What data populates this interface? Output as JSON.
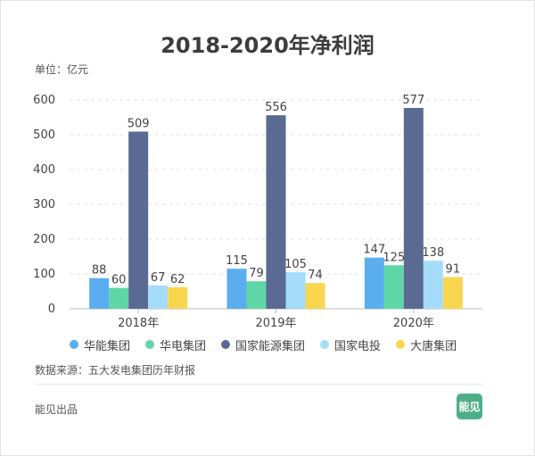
{
  "title": "2018-2020年净利润",
  "unit_label": "单位：亿元",
  "source_label": "数据来源：五大发电集团历年财报",
  "footer_label": "能见出品",
  "logo_text": "能见",
  "chart_data": {
    "type": "bar",
    "title": "2018-2020年净利润",
    "ylabel": "",
    "xlabel": "",
    "categories": [
      "2018年",
      "2019年",
      "2020年"
    ],
    "ylim": [
      0,
      600
    ],
    "yticks": [
      "0",
      "100",
      "200",
      "300",
      "400",
      "500",
      "600"
    ],
    "grid": true,
    "legend_position": "bottom",
    "series": [
      {
        "name": "华能集团",
        "color": "#5aaef0",
        "values": [
          88,
          115,
          147
        ]
      },
      {
        "name": "华电集团",
        "color": "#5fd6a6",
        "values": [
          60,
          79,
          125
        ]
      },
      {
        "name": "国家能源集团",
        "color": "#5a6a92",
        "values": [
          509,
          556,
          577
        ]
      },
      {
        "name": "国家电投",
        "color": "#a5dcf9",
        "values": [
          67,
          105,
          138
        ]
      },
      {
        "name": "大唐集团",
        "color": "#f9d650",
        "values": [
          62,
          74,
          91
        ]
      }
    ]
  }
}
